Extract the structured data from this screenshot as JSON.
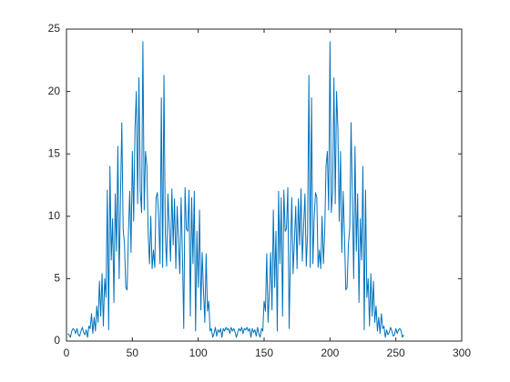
{
  "chart_data": {
    "type": "line",
    "x": [
      1,
      2,
      3,
      4,
      5,
      6,
      7,
      8,
      9,
      10,
      11,
      12,
      13,
      14,
      15,
      16,
      17,
      18,
      19,
      20,
      21,
      22,
      23,
      24,
      25,
      26,
      27,
      28,
      29,
      30,
      31,
      32,
      33,
      34,
      35,
      36,
      37,
      38,
      39,
      40,
      41,
      42,
      43,
      44,
      45,
      46,
      47,
      48,
      49,
      50,
      51,
      52,
      53,
      54,
      55,
      56,
      57,
      58,
      59,
      60,
      61,
      62,
      63,
      64,
      65,
      66,
      67,
      68,
      69,
      70,
      71,
      72,
      73,
      74,
      75,
      76,
      77,
      78,
      79,
      80,
      81,
      82,
      83,
      84,
      85,
      86,
      87,
      88,
      89,
      90,
      91,
      92,
      93,
      94,
      95,
      96,
      97,
      98,
      99,
      100,
      101,
      102,
      103,
      104,
      105,
      106,
      107,
      108,
      109,
      110,
      111,
      112,
      113,
      114,
      115,
      116,
      117,
      118,
      119,
      120,
      121,
      122,
      123,
      124,
      125,
      126,
      127,
      128,
      129,
      130,
      131,
      132,
      133,
      134,
      135,
      136,
      137,
      138,
      139,
      140,
      141,
      142,
      143,
      144,
      145,
      146,
      147,
      148,
      149,
      150,
      151,
      152,
      153,
      154,
      155,
      156,
      157,
      158,
      159,
      160,
      161,
      162,
      163,
      164,
      165,
      166,
      167,
      168,
      169,
      170,
      171,
      172,
      173,
      174,
      175,
      176,
      177,
      178,
      179,
      180,
      181,
      182,
      183,
      184,
      185,
      186,
      187,
      188,
      189,
      190,
      191,
      192,
      193,
      194,
      195,
      196,
      197,
      198,
      199,
      200,
      201,
      202,
      203,
      204,
      205,
      206,
      207,
      208,
      209,
      210,
      211,
      212,
      213,
      214,
      215,
      216,
      217,
      218,
      219,
      220,
      221,
      222,
      223,
      224,
      225,
      226,
      227,
      228,
      229,
      230,
      231,
      232,
      233,
      234,
      235,
      236,
      237,
      238,
      239,
      240,
      241,
      242,
      243,
      244,
      245,
      246,
      247,
      248,
      249,
      250,
      251,
      252,
      253,
      254,
      255,
      256
    ],
    "series": [
      {
        "color": "#0072BD",
        "values": [
          0.6,
          0.5,
          0.3,
          0.8,
          1.0,
          0.9,
          0.6,
          1.0,
          0.5,
          0.4,
          0.8,
          1.1,
          0.7,
          0.5,
          0.9,
          0.3,
          1.2,
          1.0,
          2.2,
          0.6,
          1.9,
          0.8,
          2.8,
          1.5,
          4.8,
          2.0,
          5.4,
          1.2,
          5.0,
          3.5,
          12.1,
          0.9,
          14.0,
          6.5,
          9.8,
          3.1,
          11.8,
          7.2,
          15.6,
          5.0,
          11.5,
          17.5,
          9.0,
          7.8,
          4.3,
          4.1,
          8.5,
          12.0,
          7.1,
          15.2,
          9.6,
          17.0,
          20.0,
          11.0,
          21.1,
          12.0,
          10.3,
          24.0,
          10.5,
          15.2,
          14.0,
          8.7,
          6.2,
          10.0,
          5.8,
          7.3,
          5.9,
          11.5,
          11.9,
          9.8,
          6.2,
          19.5,
          5.9,
          21.3,
          8.6,
          6.0,
          11.8,
          9.2,
          6.4,
          12.2,
          7.7,
          11.4,
          5.8,
          10.8,
          8.0,
          5.4,
          11.5,
          7.0,
          1.0,
          12.3,
          9.0,
          8.8,
          12.1,
          2.0,
          11.5,
          6.2,
          12.0,
          0.8,
          8.8,
          4.3,
          10.5,
          2.5,
          7.1,
          4.0,
          1.5,
          7.0,
          2.4,
          3.2,
          0.8,
          1.0,
          0.3,
          0.6,
          1.1,
          0.4,
          0.9,
          0.7,
          1.0,
          0.3,
          1.0,
          0.8,
          1.1,
          0.9,
          1.0,
          0.6,
          1.1,
          0.8,
          1.0,
          0.7,
          0.3,
          0.7,
          1.0,
          0.8,
          1.1,
          0.6,
          1.0,
          0.9,
          1.1,
          0.8,
          1.0,
          0.3,
          1.0,
          0.7,
          0.9,
          0.4,
          1.1,
          0.6,
          0.3,
          1.0,
          0.8,
          3.2,
          2.4,
          7.0,
          1.5,
          4.0,
          7.1,
          2.5,
          10.5,
          4.3,
          8.8,
          0.8,
          12.0,
          6.2,
          11.5,
          2.0,
          12.1,
          8.8,
          9.0,
          12.3,
          1.0,
          7.0,
          11.5,
          5.4,
          8.0,
          10.8,
          5.8,
          11.4,
          7.7,
          12.2,
          6.4,
          9.2,
          11.8,
          6.0,
          8.6,
          21.3,
          5.9,
          19.5,
          6.2,
          9.8,
          11.9,
          11.5,
          5.9,
          7.3,
          5.8,
          10.0,
          6.2,
          8.7,
          14.0,
          15.2,
          10.5,
          24.0,
          10.3,
          12.0,
          21.1,
          11.0,
          20.0,
          17.0,
          9.6,
          15.2,
          7.1,
          12.0,
          8.5,
          4.1,
          4.3,
          7.8,
          9.0,
          17.5,
          11.5,
          5.0,
          15.6,
          7.2,
          11.8,
          3.1,
          9.8,
          6.5,
          14.0,
          0.9,
          12.1,
          3.5,
          5.0,
          1.2,
          5.4,
          2.0,
          4.8,
          1.5,
          2.8,
          0.8,
          1.9,
          0.6,
          2.2,
          1.0,
          1.2,
          0.3,
          0.9,
          0.5,
          0.7,
          1.1,
          0.8,
          0.4,
          0.5,
          1.0,
          0.6,
          0.9,
          1.0,
          0.8,
          0.3,
          0.5
        ]
      }
    ],
    "xlim": [
      0,
      300
    ],
    "xticks": [
      0,
      50,
      100,
      150,
      200,
      250,
      300
    ],
    "ylim": [
      0,
      25
    ],
    "yticks": [
      0,
      5,
      10,
      15,
      20,
      25
    ],
    "grid": false
  }
}
